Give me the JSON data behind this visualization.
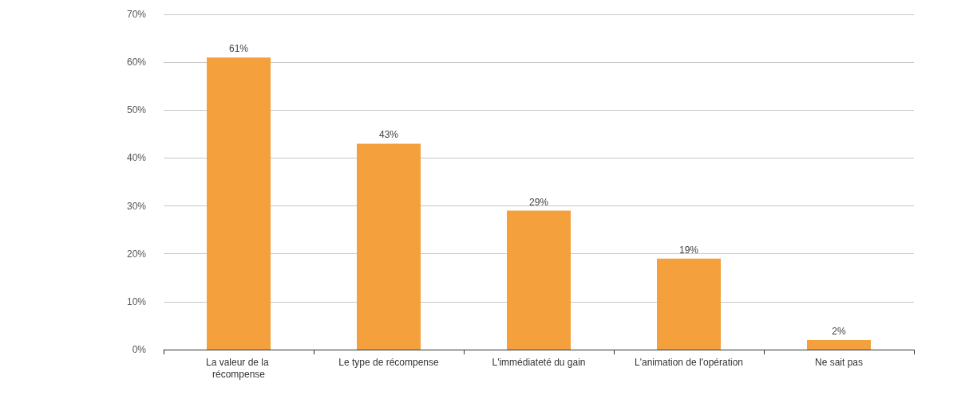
{
  "chart_data": {
    "type": "bar",
    "categories": [
      "La valeur de la récompense",
      "Le type de récompense",
      "L'immédiateté du gain",
      "L'animation de l'opération",
      "Ne sait pas"
    ],
    "values": [
      61,
      43,
      29,
      19,
      2
    ],
    "value_labels": [
      "61%",
      "43%",
      "29%",
      "19%",
      "2%"
    ],
    "color": "#f4a03c",
    "ylim": [
      0,
      70
    ],
    "yticks": [
      {
        "value": 0,
        "label": "0%"
      },
      {
        "value": 10,
        "label": "10%"
      },
      {
        "value": 20,
        "label": "20%"
      },
      {
        "value": 30,
        "label": "30%"
      },
      {
        "value": 40,
        "label": "40%"
      },
      {
        "value": 50,
        "label": "50%"
      },
      {
        "value": 60,
        "label": "60%"
      },
      {
        "value": 70,
        "label": "70%"
      }
    ],
    "grid": "y"
  }
}
